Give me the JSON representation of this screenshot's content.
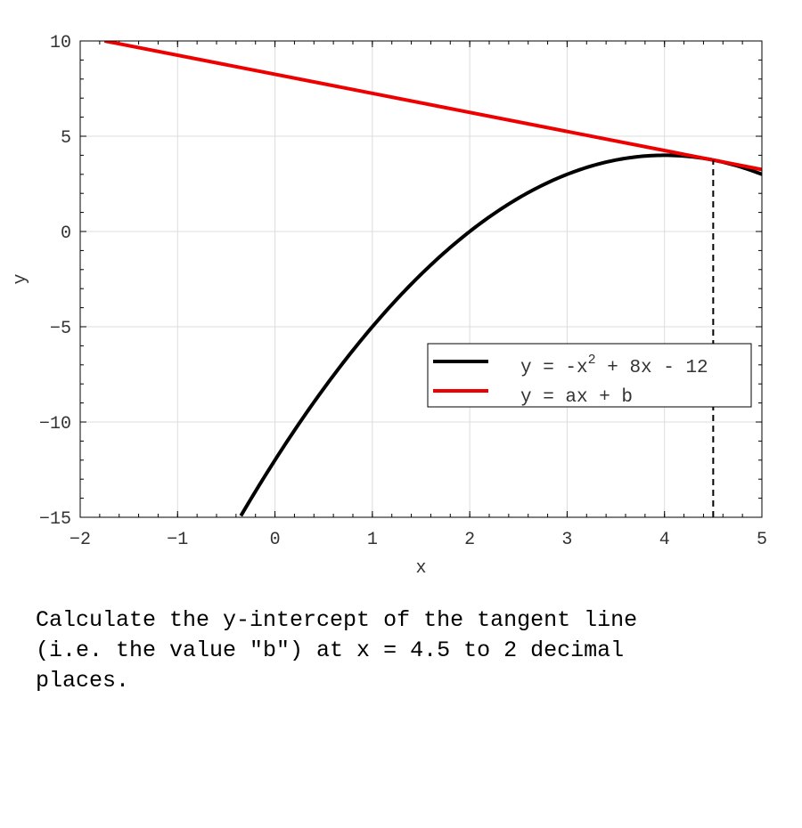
{
  "chart_data": {
    "type": "line",
    "title": "",
    "xlabel": "x",
    "ylabel": "y",
    "xlim": [
      -2,
      5
    ],
    "ylim": [
      -15,
      10
    ],
    "xticks": [
      -2,
      -1,
      0,
      1,
      2,
      3,
      4,
      5
    ],
    "yticks": [
      -15,
      -10,
      -5,
      0,
      5,
      10
    ],
    "xtick_labels": [
      "−2",
      "−1",
      "0",
      "1",
      "2",
      "3",
      "4",
      "5"
    ],
    "ytick_labels": [
      "−15",
      "−10",
      "−5",
      "0",
      "5",
      "10"
    ],
    "grid": true,
    "legend_position": "lower-right",
    "series": [
      {
        "name": "y = -x^2 + 8x - 12",
        "kind": "curve",
        "color": "#000000",
        "x": [
          -0.35,
          0,
          0.5,
          1,
          1.5,
          2,
          2.5,
          3,
          3.5,
          4,
          4.5,
          5
        ],
        "y": [
          -14.92,
          -12,
          -8.25,
          -5,
          -2.25,
          0,
          1.75,
          3,
          3.75,
          4,
          3.75,
          3
        ]
      },
      {
        "name": "y = ax + b",
        "kind": "line",
        "color": "#ee0000",
        "x": [
          -1.75,
          5
        ],
        "y": [
          10,
          3.25
        ]
      }
    ],
    "legend": {
      "entries": [
        {
          "color": "#000000",
          "parts": [
            "y = -x",
            "2",
            " + 8x - 12"
          ]
        },
        {
          "color": "#ee0000",
          "parts": [
            "y = ax + b"
          ]
        }
      ]
    },
    "annotations": [
      {
        "kind": "vertical-dashed-line",
        "x": 4.5,
        "y_from": -15,
        "y_to": 3.75,
        "color": "#000000"
      }
    ]
  },
  "question": {
    "text": "Calculate the y-intercept of the tangent line\n(i.e. the value \"b\") at x = 4.5 to 2 decimal\nplaces."
  }
}
